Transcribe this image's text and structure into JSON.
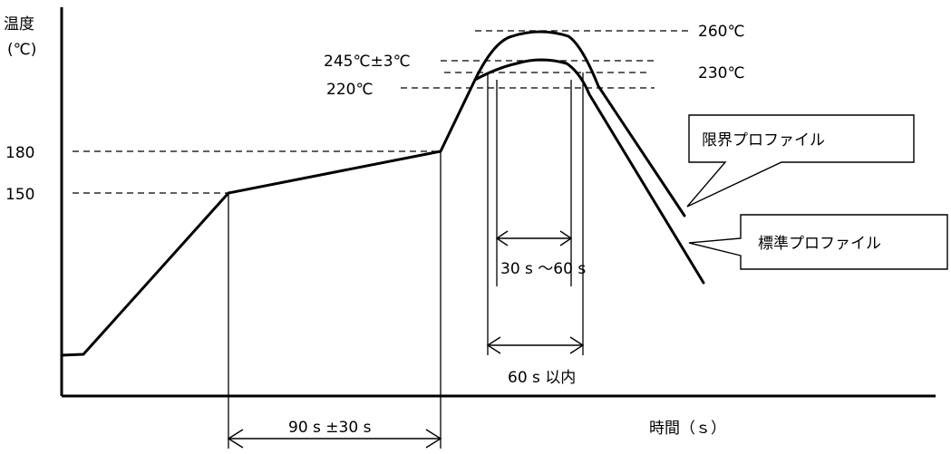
{
  "axis": {
    "y_label_line1": "温度",
    "y_label_line2": "(℃)",
    "x_label": "時間（ｓ）",
    "tick_180": "180",
    "tick_150": "150"
  },
  "temperature_labels": {
    "peak_limit": "260℃",
    "peak_standard": "245℃±3℃",
    "t230": "230℃",
    "t220": "220℃"
  },
  "durations": {
    "preheat": "90 s ±30 s",
    "above_230": "30 s ～60 s",
    "above_220": "60 s 以内"
  },
  "callouts": {
    "limit_profile": "限界プロファイル",
    "standard_profile": "標準プロファイル"
  }
}
